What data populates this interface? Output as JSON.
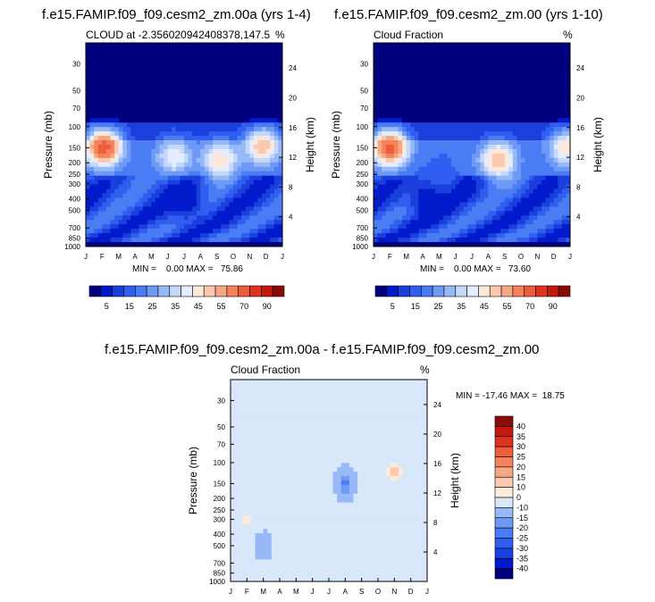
{
  "panels": [
    {
      "id": "p1",
      "title": "f.e15.FAMIP.f09_f09.cesm2_zm.00a (yrs 1-4)",
      "left_label": "CLOUD at -2.356020942408378,147.5",
      "right_label": "%",
      "minmax": "MIN =    0.00 MAX =   75.86"
    },
    {
      "id": "p2",
      "title": "f.e15.FAMIP.f09_f09.cesm2_zm.00 (yrs 1-10)",
      "left_label": "Cloud Fraction",
      "right_label": "%",
      "minmax": "MIN =    0.00 MAX =   73.60"
    },
    {
      "id": "p3",
      "title": "f.e15.FAMIP.f09_f09.cesm2_zm.00a - f.e15.FAMIP.f09_f09.cesm2_zm.00",
      "left_label": "Cloud Fraction",
      "right_label": "%",
      "minmax": "MIN = -17.46 MAX =  18.75"
    }
  ],
  "chart_data": [
    {
      "type": "heatmap",
      "title": "f.e15.FAMIP.f09_f09.cesm2_zm.00a (yrs 1-4)",
      "xlabel": "",
      "ylabel": "Pressure (mb)",
      "y2label": "Height (km)",
      "x": [
        "J",
        "F",
        "M",
        "A",
        "M",
        "J",
        "J",
        "A",
        "S",
        "O",
        "N",
        "D",
        "J"
      ],
      "pressure_ticks": [
        30,
        50,
        70,
        100,
        150,
        200,
        250,
        300,
        400,
        500,
        700,
        850,
        1000
      ],
      "height_ticks": [
        24,
        20,
        16,
        12,
        8,
        4
      ],
      "ylim": [
        1000,
        20
      ],
      "min": 0.0,
      "max": 75.86,
      "peaks": [
        {
          "month": 1.1,
          "pressure": 150,
          "value": 75
        },
        {
          "month": 5.4,
          "pressure": 180,
          "value": 45
        },
        {
          "month": 8.2,
          "pressure": 190,
          "value": 50
        },
        {
          "month": 10.8,
          "pressure": 145,
          "value": 55
        },
        {
          "month": 6.0,
          "pressure": 420,
          "value": 5
        }
      ]
    },
    {
      "type": "heatmap",
      "title": "f.e15.FAMIP.f09_f09.cesm2_zm.00 (yrs 1-10)",
      "xlabel": "",
      "ylabel": "Pressure (mb)",
      "y2label": "Height (km)",
      "x": [
        "J",
        "F",
        "M",
        "A",
        "M",
        "J",
        "J",
        "A",
        "S",
        "O",
        "N",
        "D",
        "J"
      ],
      "pressure_ticks": [
        30,
        50,
        70,
        100,
        150,
        200,
        250,
        300,
        400,
        500,
        700,
        850,
        1000
      ],
      "height_ticks": [
        24,
        20,
        16,
        12,
        8,
        4
      ],
      "ylim": [
        1000,
        20
      ],
      "min": 0.0,
      "max": 73.6,
      "peaks": [
        {
          "month": 1.0,
          "pressure": 150,
          "value": 73
        },
        {
          "month": 7.6,
          "pressure": 190,
          "value": 55
        },
        {
          "month": 11.8,
          "pressure": 150,
          "value": 50
        },
        {
          "month": 3.3,
          "pressure": 400,
          "value": 5
        }
      ]
    },
    {
      "type": "heatmap",
      "title": "f.e15.FAMIP.f09_f09.cesm2_zm.00a - f.e15.FAMIP.f09_f09.cesm2_zm.00",
      "xlabel": "",
      "ylabel": "Pressure (mb)",
      "y2label": "Height (km)",
      "x": [
        "J",
        "F",
        "M",
        "A",
        "M",
        "J",
        "J",
        "A",
        "S",
        "O",
        "N",
        "D",
        "J"
      ],
      "pressure_ticks": [
        30,
        50,
        70,
        100,
        150,
        200,
        250,
        300,
        400,
        500,
        700,
        850,
        1000
      ],
      "height_ticks": [
        24,
        20,
        16,
        12,
        8,
        4
      ],
      "ylim": [
        1000,
        20
      ],
      "min": -17.46,
      "max": 18.75,
      "peaks": [
        {
          "month": 7.0,
          "pressure": 150,
          "value": -17
        },
        {
          "month": 10.0,
          "pressure": 120,
          "value": 18
        },
        {
          "month": 1.0,
          "pressure": 300,
          "value": 12
        },
        {
          "month": 2.0,
          "pressure": 500,
          "value": -6
        }
      ]
    }
  ],
  "colorbar_abs": {
    "levels": [
      0,
      5,
      10,
      15,
      20,
      25,
      30,
      35,
      40,
      45,
      50,
      55,
      60,
      70,
      80,
      90,
      100
    ],
    "labels": [
      "5",
      "15",
      "25",
      "35",
      "45",
      "55",
      "70",
      "90"
    ],
    "colors": [
      "#00007e",
      "#001acc",
      "#1a3fdc",
      "#2f5ef0",
      "#4a7cf4",
      "#6e9af6",
      "#98b9f8",
      "#c5d8fb",
      "#e3edfd",
      "#fde8da",
      "#fbcaae",
      "#f8a783",
      "#f4825d",
      "#ef5c3b",
      "#dd3420",
      "#c01a10",
      "#8a0c08"
    ]
  },
  "colorbar_diff": {
    "levels": [
      -40,
      -35,
      -30,
      -25,
      -20,
      -15,
      -10,
      0,
      10,
      15,
      20,
      25,
      30,
      35,
      40
    ],
    "labels": [
      "40",
      "35",
      "30",
      "25",
      "20",
      "15",
      "10",
      "0",
      "-10",
      "-15",
      "-20",
      "-25",
      "-30",
      "-35",
      "-40"
    ],
    "colors": [
      "#00007e",
      "#001acc",
      "#1a3fdc",
      "#2f5ef0",
      "#4a7cf4",
      "#6e9af6",
      "#98b9f8",
      "#d9e7fb",
      "#fdebdb",
      "#fbcaae",
      "#f8a783",
      "#f4825d",
      "#ef5c3b",
      "#dd3420",
      "#c01a10",
      "#8a0c08"
    ]
  }
}
